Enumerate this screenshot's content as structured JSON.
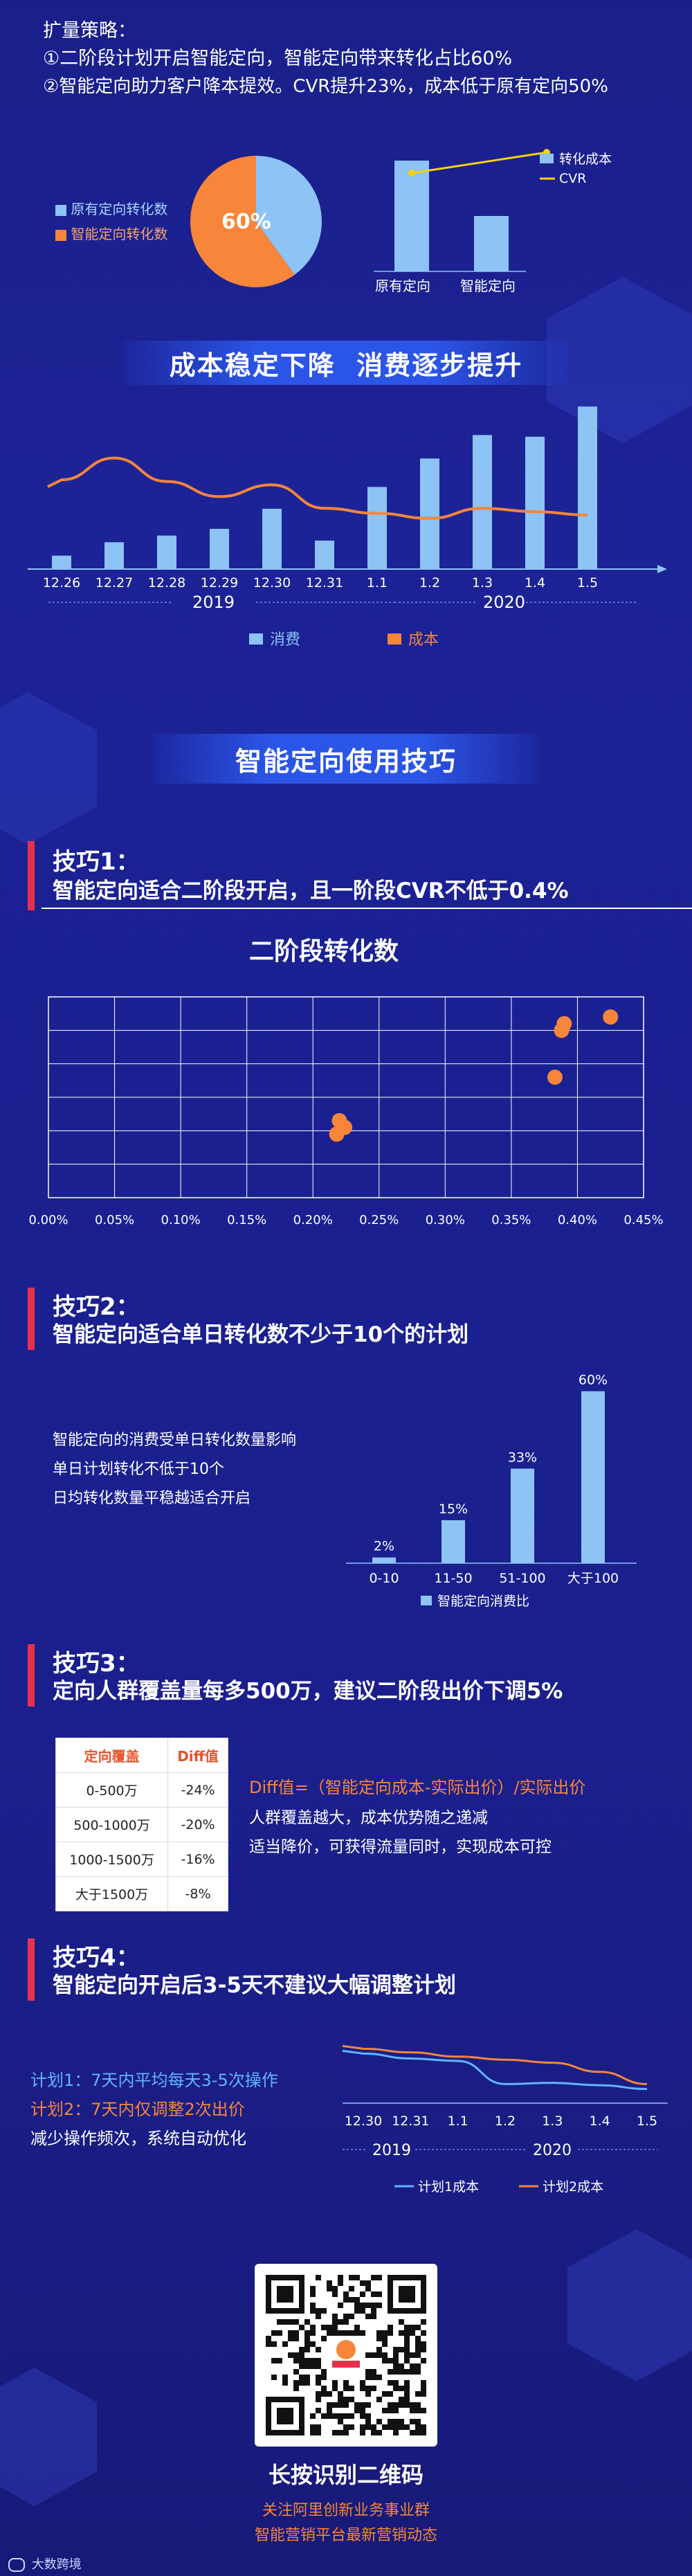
{
  "strategy": {
    "heading": "扩量策略：",
    "line1": "①二阶段计划开启智能定向，智能定向带来转化占比60%",
    "line2": "②智能定向助力客户降本提效。CVR提升23%，成本低于原有定向50%"
  },
  "pie": {
    "legend": [
      {
        "label": "原有定向转化数",
        "color": "#8ec3f5"
      },
      {
        "label": "智能定向转化数",
        "color": "#f7853a"
      }
    ],
    "slice_label": "60%",
    "chart_data": {
      "type": "pie",
      "labels": [
        "原有定向转化数",
        "智能定向转化数"
      ],
      "values": [
        40,
        60
      ]
    }
  },
  "cvr_chart": {
    "legend": {
      "bar": "转化成本",
      "line": "CVR"
    },
    "categories": [
      "原有定向",
      "智能定向"
    ],
    "chart_data": {
      "type": "bar",
      "categories": [
        "原有定向",
        "智能定向"
      ],
      "series": [
        {
          "name": "转化成本",
          "values": [
            100,
            50
          ]
        },
        {
          "name": "CVR",
          "values": [
            100,
            123
          ]
        }
      ]
    }
  },
  "trend": {
    "banner": "成本稳定下降  消费逐步提升",
    "x_labels": [
      "12.26",
      "12.27",
      "12.28",
      "12.29",
      "12.30",
      "12.31",
      "1.1",
      "1.2",
      "1.3",
      "1.4",
      "1.5"
    ],
    "year1": "2019",
    "year2": "2020",
    "legend": {
      "bar": "消费",
      "line": "成本"
    },
    "chart_data": {
      "type": "bar",
      "categories": [
        "12.26",
        "12.27",
        "12.28",
        "12.29",
        "12.30",
        "12.31",
        "1.1",
        "1.2",
        "1.3",
        "1.4",
        "1.5"
      ],
      "series": [
        {
          "name": "消费",
          "values": [
            8,
            16,
            20,
            24,
            36,
            17,
            49,
            66,
            80,
            79,
            97
          ]
        },
        {
          "name": "成本",
          "values": [
            45,
            58,
            44,
            35,
            42,
            28,
            25,
            22,
            28,
            26,
            24
          ]
        }
      ]
    }
  },
  "tips_banner": "智能定向使用技巧",
  "tip1": {
    "title": "技巧1：",
    "desc": "智能定向适合二阶段开启，且一阶段CVR不低于0.4%"
  },
  "scatter": {
    "title": "二阶段转化数",
    "x_ticks": [
      "0.00%",
      "0.05%",
      "0.10%",
      "0.15%",
      "0.20%",
      "0.25%",
      "0.30%",
      "0.35%",
      "0.40%",
      "0.45%"
    ],
    "chart_data": {
      "type": "scatter",
      "xlim": [
        0,
        0.45
      ],
      "ylim": [
        0,
        6
      ],
      "points": [
        {
          "x": 0.425,
          "y": 5.4
        },
        {
          "x": 0.39,
          "y": 5.2
        },
        {
          "x": 0.388,
          "y": 5.0
        },
        {
          "x": 0.383,
          "y": 3.6
        },
        {
          "x": 0.22,
          "y": 2.3
        },
        {
          "x": 0.224,
          "y": 2.1
        },
        {
          "x": 0.218,
          "y": 1.9
        }
      ]
    }
  },
  "tip2": {
    "title": "技巧2：",
    "desc": "智能定向适合单日转化数不少于10个的计划",
    "notes": [
      "智能定向的消费受单日转化数量影响",
      "单日计划转化不低于10个",
      "日均转化数量平稳越适合开启"
    ],
    "legend": "智能定向消费比",
    "chart_data": {
      "type": "bar",
      "categories": [
        "0-10",
        "11-50",
        "51-100",
        "大于100"
      ],
      "values": [
        2,
        15,
        33,
        60
      ],
      "labels": [
        "2%",
        "15%",
        "33%",
        "60%"
      ]
    }
  },
  "tip3": {
    "title": "技巧3：",
    "desc": "定向人群覆盖量每多500万，建议二阶段出价下调5%",
    "table_headers": [
      "定向覆盖",
      "Diff值"
    ],
    "table_rows": [
      [
        "0-500万",
        "-24%"
      ],
      [
        "500-1000万",
        "-20%"
      ],
      [
        "1000-1500万",
        "-16%"
      ],
      [
        "大于1500万",
        "-8%"
      ]
    ],
    "formula": "Diff值=（智能定向成本-实际出价）/实际出价",
    "note1": "人群覆盖越大，成本优势随之递减",
    "note2": "适当降价，可获得流量同时，实现成本可控"
  },
  "tip4": {
    "title": "技巧4：",
    "desc": "智能定向开启后3-5天不建议大幅调整计划",
    "plan1": "计划1：7天内平均每天3-5次操作",
    "plan2": "计划2：7天内仅调整2次出价",
    "note": "减少操作频次，系统自动优化",
    "x_labels": [
      "12.30",
      "12.31",
      "1.1",
      "1.2",
      "1.3",
      "1.4",
      "1.5"
    ],
    "year1": "2019",
    "year2": "2020",
    "legend": [
      "计划1成本",
      "计划2成本"
    ],
    "colors": {
      "plan1": "#62b4ff",
      "plan2": "#f7853a"
    },
    "chart_data": {
      "type": "line",
      "categories": [
        "12.30",
        "12.31",
        "1.1",
        "1.2",
        "1.3",
        "1.4",
        "1.5"
      ],
      "series": [
        {
          "name": "计划1成本",
          "values": [
            70,
            62,
            58,
            20,
            22,
            18,
            12
          ]
        },
        {
          "name": "计划2成本",
          "values": [
            78,
            72,
            65,
            60,
            55,
            40,
            20
          ]
        }
      ]
    }
  },
  "footer": {
    "qr_caption": "长按识别二维码",
    "line1": "关注阿里创新业务事业群",
    "line2": "智能营销平台最新营销动态",
    "watermark": "大数跨境"
  }
}
